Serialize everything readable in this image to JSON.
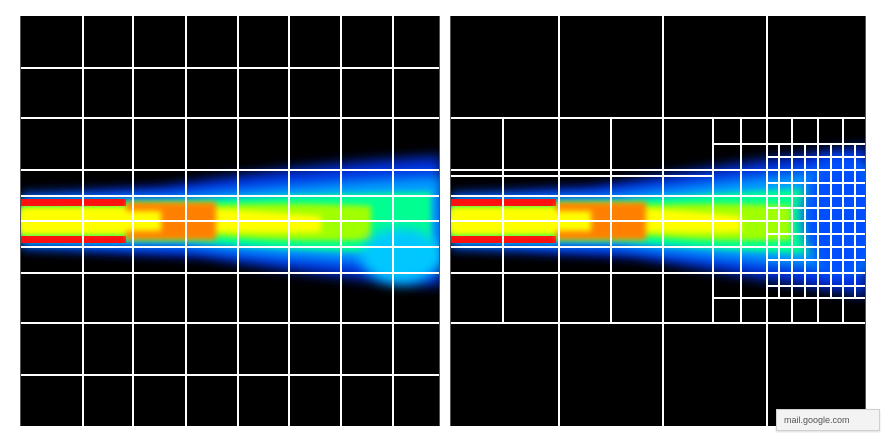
{
  "panels": [
    {
      "name": "left-uniform-grid-panel",
      "grid": "uniform"
    },
    {
      "name": "right-adaptive-grid-panel",
      "grid": "adaptive"
    }
  ],
  "colors": {
    "background": "#000000",
    "grid": "#ffffff",
    "colormap": [
      "#000000",
      "#0018c0",
      "#0050ff",
      "#00c8ff",
      "#00ff90",
      "#a0ff00",
      "#ffff00",
      "#ff8000",
      "#ff1010"
    ]
  },
  "tooltip": {
    "text": "mail.google.com"
  }
}
